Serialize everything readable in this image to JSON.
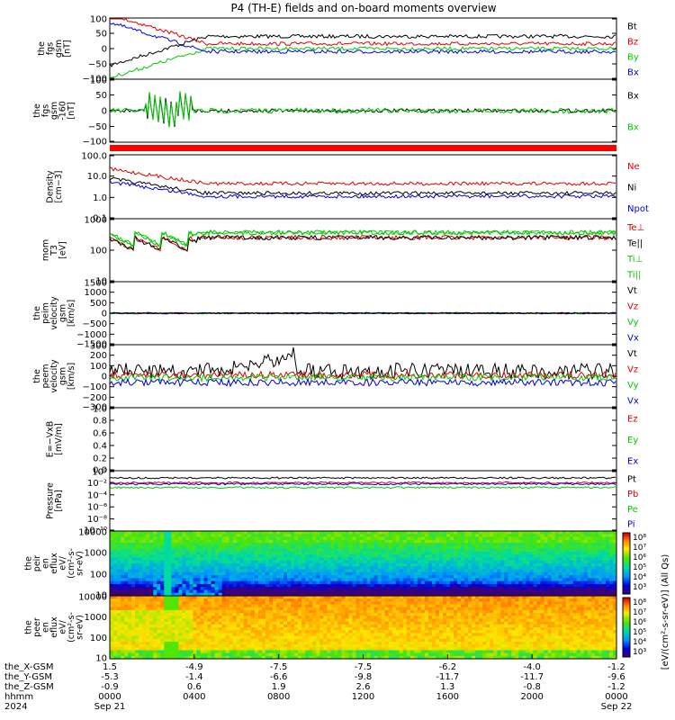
{
  "title": "P4 (TH-E) fields and on-board moments overview",
  "colors": {
    "black": "#000000",
    "red": "#dd0000",
    "green": "#00cc00",
    "blue": "#0000dd"
  },
  "chart_data": [
    {
      "type": "line",
      "ylabel_lines": [
        "the",
        "fgs",
        "gsm",
        "[nT]"
      ],
      "ylim": [
        -100,
        100
      ],
      "yticks": [
        "100",
        "50",
        "0",
        "−50",
        "−100"
      ],
      "series": [
        {
          "name": "Bt",
          "color": "black"
        },
        {
          "name": "Bz",
          "color": "red"
        },
        {
          "name": "By",
          "color": "green"
        },
        {
          "name": "Bx",
          "color": "blue"
        }
      ]
    },
    {
      "type": "line",
      "ylabel_lines": [
        "the",
        "fgs",
        "gsm",
        "-160",
        "[nT]"
      ],
      "ylim": [
        -100,
        100
      ],
      "yticks": [
        "100",
        "50",
        "0",
        "−50",
        "−100"
      ],
      "series": [
        {
          "name": "Bx",
          "color": "black"
        },
        {
          "name": "Bx",
          "color": "green"
        }
      ]
    },
    {
      "type": "line",
      "ylabel_lines": [
        "Density",
        "[cm−3]"
      ],
      "scale": "log",
      "yticks": [
        "100.0",
        "10.0",
        "1.0",
        "0.1"
      ],
      "series": [
        {
          "name": "Ne",
          "color": "red"
        },
        {
          "name": "Ni",
          "color": "black"
        },
        {
          "name": "Npot",
          "color": "blue"
        }
      ]
    },
    {
      "type": "line",
      "ylabel_lines": [
        "mom",
        "T3",
        "[eV]"
      ],
      "scale": "log",
      "yticks": [
        "1000",
        "100",
        "10"
      ],
      "series": [
        {
          "name": "Te⊥",
          "color": "red"
        },
        {
          "name": "Te||",
          "color": "black"
        },
        {
          "name": "Ti⊥",
          "color": "green"
        },
        {
          "name": "Ti||",
          "color": "green"
        }
      ]
    },
    {
      "type": "line",
      "ylabel_lines": [
        "the",
        "peim",
        "velocity",
        "gsm",
        "[km/s]"
      ],
      "ylim": [
        -1500,
        1500
      ],
      "yticks": [
        "1500",
        "1000",
        "500",
        "0",
        "−500",
        "−1000",
        "−1500"
      ],
      "series": [
        {
          "name": "Vt",
          "color": "black"
        },
        {
          "name": "Vz",
          "color": "red"
        },
        {
          "name": "Vy",
          "color": "green"
        },
        {
          "name": "Vx",
          "color": "blue"
        }
      ]
    },
    {
      "type": "line",
      "ylabel_lines": [
        "the",
        "peem",
        "velocity",
        "gsm",
        "[km/s]"
      ],
      "ylim": [
        -300,
        300
      ],
      "yticks": [
        "300",
        "200",
        "100",
        "0",
        "−100",
        "−200",
        "−300"
      ],
      "series": [
        {
          "name": "Vt",
          "color": "black"
        },
        {
          "name": "Vz",
          "color": "red"
        },
        {
          "name": "Vy",
          "color": "green"
        },
        {
          "name": "Vx",
          "color": "blue"
        }
      ]
    },
    {
      "type": "line",
      "ylabel_lines": [
        "E=−VxB",
        "[mV/m]"
      ],
      "ylim": [
        0,
        1
      ],
      "yticks": [
        "1.0",
        "0.8",
        "0.6",
        "0.4",
        "0.2",
        "0.0"
      ],
      "series": [
        {
          "name": "Ez",
          "color": "red"
        },
        {
          "name": "Ey",
          "color": "green"
        },
        {
          "name": "Ex",
          "color": "blue"
        }
      ]
    },
    {
      "type": "line",
      "ylabel_lines": [
        "Pressure",
        "[nPa]"
      ],
      "scale": "log",
      "yticks": [
        "10⁰",
        "10⁻²",
        "10⁻⁴",
        "10⁻⁶",
        "10⁻⁸",
        "10⁻¹⁰"
      ],
      "series": [
        {
          "name": "Pt",
          "color": "black"
        },
        {
          "name": "Pb",
          "color": "red"
        },
        {
          "name": "Pe",
          "color": "green"
        },
        {
          "name": "Pi",
          "color": "blue"
        }
      ]
    },
    {
      "type": "heatmap",
      "ylabel_lines": [
        "the",
        "peir",
        "en",
        "eflux",
        "eV/",
        "(cm²-s-",
        "sr-eV)"
      ],
      "scale": "log",
      "yticks": [
        "10000",
        "1000",
        "100",
        "10"
      ]
    },
    {
      "type": "heatmap",
      "ylabel_lines": [
        "the",
        "peer",
        "en",
        "eflux",
        "eV/",
        "(cm²-s-",
        "sr-eV)"
      ],
      "scale": "log",
      "yticks": [
        "10000",
        "1000",
        "100",
        "10"
      ]
    }
  ],
  "colorbar": {
    "ticks": [
      "10⁸",
      "10⁷",
      "10⁶",
      "10⁵",
      "10⁴",
      "10³"
    ],
    "label": "[eV/(cm²-s-sr-eV)] (All Qs)"
  },
  "x_axis": {
    "row_labels": [
      "the_X-GSM",
      "the_Y-GSM",
      "the_Z-GSM",
      "hhmm",
      "2024"
    ],
    "ticks": [
      {
        "v": [
          "1.5",
          "-5.3",
          "-0.9",
          "0000",
          "Sep 21"
        ]
      },
      {
        "v": [
          "-4.9",
          "-1.4",
          "0.6",
          "0400",
          ""
        ]
      },
      {
        "v": [
          "-7.5",
          "-6.6",
          "1.9",
          "0800",
          ""
        ]
      },
      {
        "v": [
          "-7.5",
          "-9.8",
          "2.6",
          "1200",
          ""
        ]
      },
      {
        "v": [
          "-6.2",
          "-11.7",
          "1.3",
          "1600",
          ""
        ]
      },
      {
        "v": [
          "-4.0",
          "-11.7",
          "-0.8",
          "2000",
          ""
        ]
      },
      {
        "v": [
          "-1.2",
          "-9.6",
          "-1.2",
          "0000",
          "Sep 22"
        ]
      }
    ]
  }
}
